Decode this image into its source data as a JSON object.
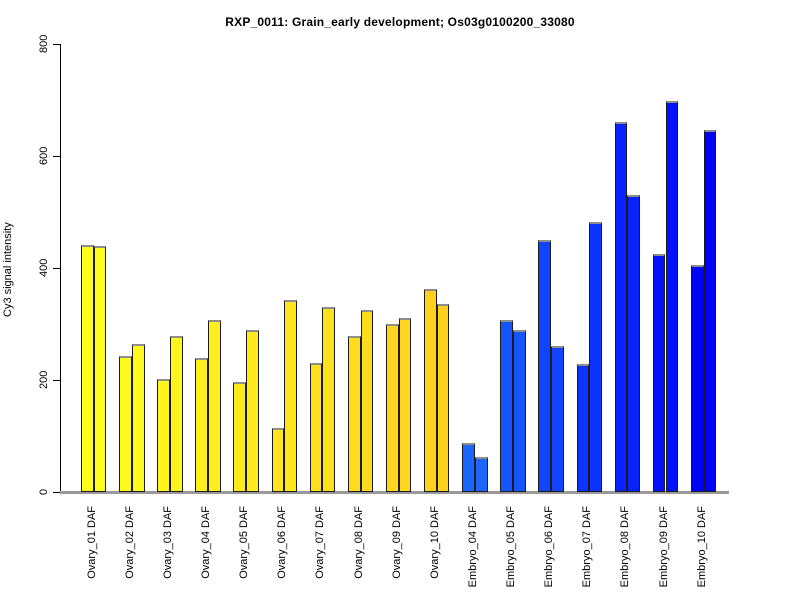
{
  "page": {
    "background": "#FFFFFF"
  },
  "chart_data": {
    "type": "bar",
    "title": "RXP_0011: Grain_early development; Os03g0100200_33080",
    "xlabel": "",
    "ylabel": "Cy3 signal intensity",
    "ylim": [
      0,
      800
    ],
    "yticks": [
      0,
      200,
      400,
      600,
      800
    ],
    "grid": false,
    "legend": "none",
    "bars_per_category": 2,
    "axis_color": "#000000",
    "baseline_color": "#999999",
    "bar_border_color": "#1B1B1B",
    "bar_cap_color": "#8E8E8E",
    "categories": [
      "Ovary_01 DAF",
      "Ovary_02 DAF",
      "Ovary_03 DAF",
      "Ovary_04 DAF",
      "Ovary_05 DAF",
      "Ovary_06 DAF",
      "Ovary_07 DAF",
      "Ovary_08 DAF",
      "Ovary_09 DAF",
      "Ovary_10 DAF",
      "Embryo_04 DAF",
      "Embryo_05 DAF",
      "Embryo_06 DAF",
      "Embryo_07 DAF",
      "Embryo_08 DAF",
      "Embryo_09 DAF",
      "Embryo_10 DAF"
    ],
    "category_colors": [
      "#FFFF1E",
      "#FFFA1E",
      "#FFF51D",
      "#FFF01D",
      "#FFEB1D",
      "#FFE51E",
      "#FFE01E",
      "#FFDB1D",
      "#FFD61D",
      "#FFD11C",
      "#1A66FF",
      "#1555FF",
      "#1144FF",
      "#0D33FF",
      "#0822FF",
      "#0411FF",
      "#0000FF"
    ],
    "series": [
      {
        "name": "bar_1",
        "values": [
          441,
          242,
          201,
          239,
          197,
          115,
          230,
          279,
          300,
          362,
          87,
          307,
          450,
          229,
          661,
          425,
          405
        ]
      },
      {
        "name": "bar_2",
        "values": [
          439,
          265,
          279,
          308,
          290,
          342,
          330,
          325,
          310,
          336,
          63,
          290,
          260,
          482,
          530,
          699,
          646
        ]
      }
    ]
  }
}
